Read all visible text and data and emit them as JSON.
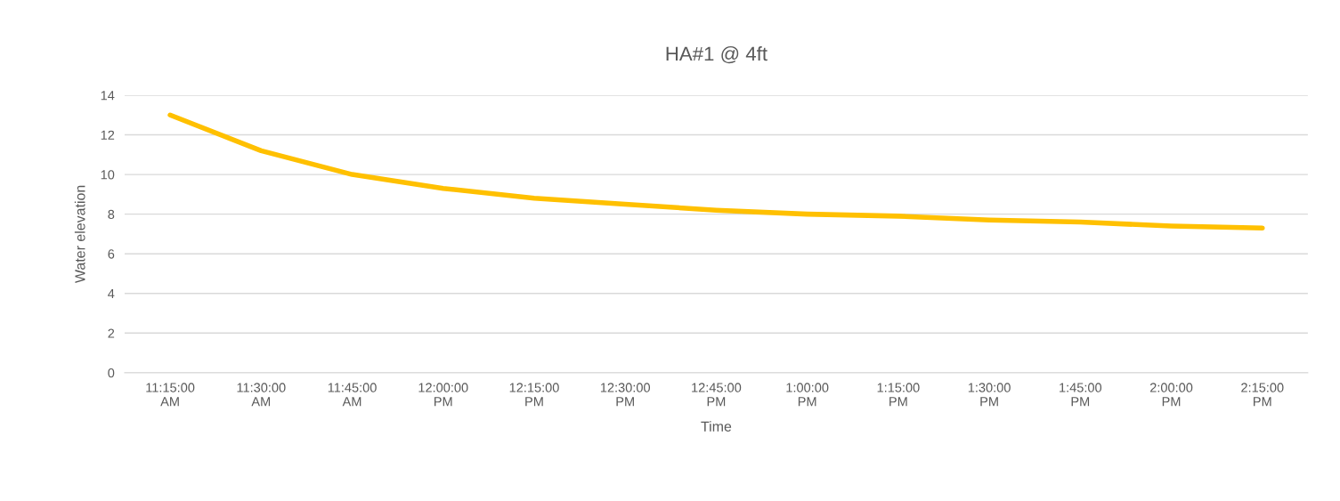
{
  "chart_data": {
    "type": "line",
    "title": "HA#1 @ 4ft",
    "xlabel": "Time",
    "ylabel": "Water elevation",
    "categories": [
      "11:15:00\nAM",
      "11:30:00\nAM",
      "11:45:00\nAM",
      "12:00:00\nPM",
      "12:15:00\nPM",
      "12:30:00\nPM",
      "12:45:00\nPM",
      "1:00:00\nPM",
      "1:15:00\nPM",
      "1:30:00\nPM",
      "1:45:00\nPM",
      "2:00:00\nPM",
      "2:15:00\nPM"
    ],
    "series": [
      {
        "color": "#ffc000",
        "values": [
          13.0,
          11.2,
          10.0,
          9.3,
          8.8,
          8.5,
          8.2,
          8.0,
          7.9,
          7.7,
          7.6,
          7.4,
          7.3
        ]
      }
    ],
    "ylim": [
      0,
      14
    ],
    "yticks": [
      0,
      2,
      4,
      6,
      8,
      10,
      12,
      14
    ],
    "grid": "y",
    "legend": false,
    "marker": "none",
    "line_style": "solid"
  }
}
